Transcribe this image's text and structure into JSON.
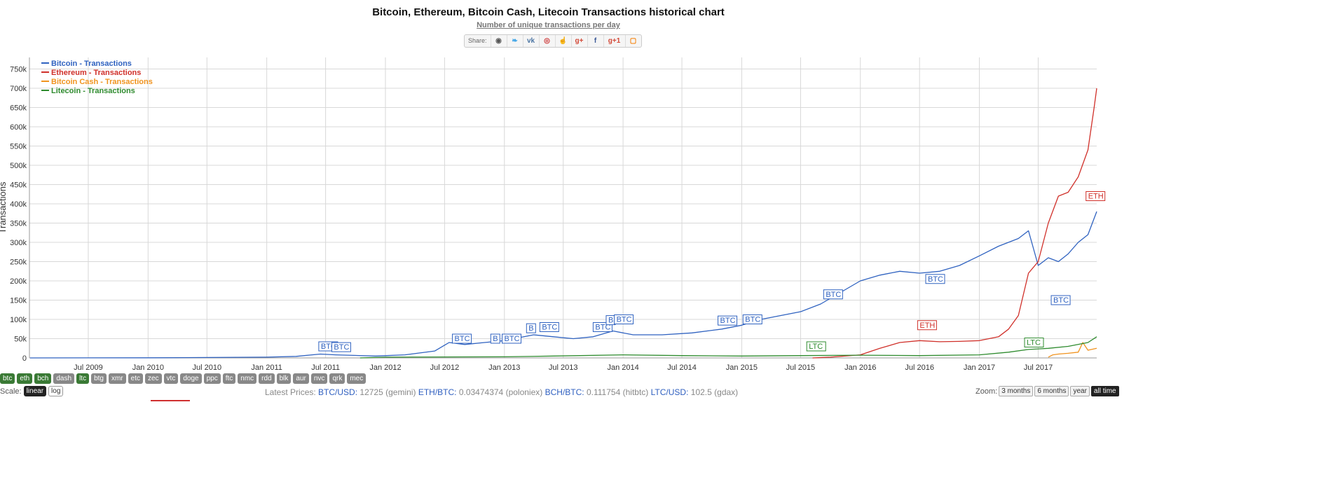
{
  "header": {
    "title": "Bitcoin, Ethereum, Bitcoin Cash, Litecoin Transactions historical chart",
    "subtitle": "Number of unique transactions per day",
    "share_label": "Share:",
    "share_icons": [
      "reddit-icon",
      "twitter-icon",
      "vk-icon",
      "weibo-icon",
      "like-icon",
      "googleplus-icon",
      "facebook-icon",
      "gplus-one-icon",
      "blogger-icon"
    ]
  },
  "chart_data": {
    "type": "line",
    "ylabel": "Transactions",
    "ylim": [
      0,
      780000
    ],
    "yticks": [
      0,
      50000,
      100000,
      150000,
      200000,
      250000,
      300000,
      350000,
      400000,
      450000,
      500000,
      550000,
      600000,
      650000,
      700000,
      750000
    ],
    "ytick_labels": [
      "0",
      "50k",
      "100k",
      "150k",
      "200k",
      "250k",
      "300k",
      "350k",
      "400k",
      "450k",
      "500k",
      "550k",
      "600k",
      "650k",
      "700k",
      "750k"
    ],
    "xlim": [
      "2009-01-01",
      "2017-12-28"
    ],
    "xticks": [
      "2009-07-01",
      "2010-01-01",
      "2010-07-01",
      "2011-01-01",
      "2011-07-01",
      "2012-01-01",
      "2012-07-01",
      "2013-01-01",
      "2013-07-01",
      "2014-01-01",
      "2014-07-01",
      "2015-01-01",
      "2015-07-01",
      "2016-01-01",
      "2016-07-01",
      "2017-01-01",
      "2017-07-01"
    ],
    "xtick_labels": [
      "Jul 2009",
      "Jan 2010",
      "Jul 2010",
      "Jan 2011",
      "Jul 2011",
      "Jan 2012",
      "Jul 2012",
      "Jan 2013",
      "Jul 2013",
      "Jan 2014",
      "Jul 2014",
      "Jan 2015",
      "Jul 2015",
      "Jan 2016",
      "Jul 2016",
      "Jan 2017",
      "Jul 2017"
    ],
    "legend_position": "top-left",
    "grid": true,
    "series": [
      {
        "name": "Bitcoin - Transactions",
        "color": "#2f62c0",
        "points": [
          [
            "2009-01-03",
            0
          ],
          [
            "2010-01-01",
            300
          ],
          [
            "2010-07-01",
            1000
          ],
          [
            "2011-01-01",
            2000
          ],
          [
            "2011-04-01",
            4000
          ],
          [
            "2011-06-15",
            10000
          ],
          [
            "2011-08-01",
            8000
          ],
          [
            "2011-12-01",
            5000
          ],
          [
            "2012-03-01",
            8000
          ],
          [
            "2012-06-01",
            18000
          ],
          [
            "2012-07-15",
            40000
          ],
          [
            "2012-09-01",
            35000
          ],
          [
            "2012-11-01",
            40000
          ],
          [
            "2013-01-01",
            45000
          ],
          [
            "2013-04-01",
            60000
          ],
          [
            "2013-06-01",
            55000
          ],
          [
            "2013-08-01",
            50000
          ],
          [
            "2013-10-01",
            55000
          ],
          [
            "2013-12-01",
            70000
          ],
          [
            "2014-02-01",
            60000
          ],
          [
            "2014-05-01",
            60000
          ],
          [
            "2014-08-01",
            65000
          ],
          [
            "2014-11-01",
            75000
          ],
          [
            "2015-01-01",
            85000
          ],
          [
            "2015-03-01",
            100000
          ],
          [
            "2015-05-01",
            110000
          ],
          [
            "2015-07-01",
            120000
          ],
          [
            "2015-09-01",
            140000
          ],
          [
            "2015-11-01",
            170000
          ],
          [
            "2016-01-01",
            200000
          ],
          [
            "2016-03-01",
            215000
          ],
          [
            "2016-05-01",
            225000
          ],
          [
            "2016-07-01",
            220000
          ],
          [
            "2016-09-01",
            225000
          ],
          [
            "2016-11-01",
            240000
          ],
          [
            "2017-01-01",
            265000
          ],
          [
            "2017-03-01",
            290000
          ],
          [
            "2017-05-01",
            310000
          ],
          [
            "2017-06-01",
            330000
          ],
          [
            "2017-07-01",
            240000
          ],
          [
            "2017-08-01",
            260000
          ],
          [
            "2017-09-01",
            250000
          ],
          [
            "2017-10-01",
            270000
          ],
          [
            "2017-11-01",
            300000
          ],
          [
            "2017-12-01",
            320000
          ],
          [
            "2017-12-28",
            380000
          ]
        ]
      },
      {
        "name": "Ethereum - Transactions",
        "color": "#d0302a",
        "points": [
          [
            "2015-08-07",
            0
          ],
          [
            "2015-10-01",
            2000
          ],
          [
            "2016-01-01",
            8000
          ],
          [
            "2016-03-01",
            25000
          ],
          [
            "2016-05-01",
            40000
          ],
          [
            "2016-07-01",
            45000
          ],
          [
            "2016-09-01",
            42000
          ],
          [
            "2016-11-01",
            43000
          ],
          [
            "2017-01-01",
            45000
          ],
          [
            "2017-03-01",
            55000
          ],
          [
            "2017-04-01",
            75000
          ],
          [
            "2017-05-01",
            110000
          ],
          [
            "2017-06-01",
            220000
          ],
          [
            "2017-07-01",
            250000
          ],
          [
            "2017-08-01",
            350000
          ],
          [
            "2017-09-01",
            420000
          ],
          [
            "2017-10-01",
            430000
          ],
          [
            "2017-11-01",
            470000
          ],
          [
            "2017-12-01",
            540000
          ],
          [
            "2017-12-20",
            650000
          ],
          [
            "2017-12-28",
            700000
          ]
        ]
      },
      {
        "name": "Bitcoin Cash - Transactions",
        "color": "#f0931e",
        "points": [
          [
            "2017-08-01",
            2000
          ],
          [
            "2017-08-15",
            8000
          ],
          [
            "2017-09-01",
            10000
          ],
          [
            "2017-10-01",
            12000
          ],
          [
            "2017-11-01",
            15000
          ],
          [
            "2017-11-15",
            40000
          ],
          [
            "2017-12-01",
            20000
          ],
          [
            "2017-12-28",
            25000
          ]
        ]
      },
      {
        "name": "Litecoin - Transactions",
        "color": "#2e8b2e",
        "points": [
          [
            "2011-10-15",
            0
          ],
          [
            "2012-01-01",
            2000
          ],
          [
            "2013-01-01",
            3000
          ],
          [
            "2013-06-01",
            5000
          ],
          [
            "2014-01-01",
            8000
          ],
          [
            "2014-07-01",
            6000
          ],
          [
            "2015-01-01",
            5000
          ],
          [
            "2015-07-01",
            6000
          ],
          [
            "2016-01-01",
            7000
          ],
          [
            "2016-07-01",
            6000
          ],
          [
            "2017-01-01",
            8000
          ],
          [
            "2017-04-01",
            15000
          ],
          [
            "2017-06-01",
            22000
          ],
          [
            "2017-08-01",
            25000
          ],
          [
            "2017-10-01",
            30000
          ],
          [
            "2017-12-01",
            40000
          ],
          [
            "2017-12-28",
            55000
          ]
        ]
      }
    ],
    "annotations": [
      {
        "label": "BTC",
        "x": "2011-06-10",
        "y": 20000,
        "series": "Bitcoin - Transactions"
      },
      {
        "label": "BTC",
        "x": "2011-07-20",
        "y": 18000,
        "series": "Bitcoin - Transactions"
      },
      {
        "label": "BTC",
        "x": "2012-07-25",
        "y": 40000,
        "series": "Bitcoin - Transactions"
      },
      {
        "label": "B",
        "x": "2012-11-20",
        "y": 40000,
        "series": "Bitcoin - Transactions"
      },
      {
        "label": "BTC",
        "x": "2012-12-25",
        "y": 40000,
        "series": "Bitcoin - Transactions"
      },
      {
        "label": "B",
        "x": "2013-03-10",
        "y": 67000,
        "series": "Bitcoin - Transactions"
      },
      {
        "label": "BTC",
        "x": "2013-04-20",
        "y": 70000,
        "series": "Bitcoin - Transactions"
      },
      {
        "label": "BTC",
        "x": "2013-10-01",
        "y": 70000,
        "series": "Bitcoin - Transactions"
      },
      {
        "label": "B",
        "x": "2013-11-10",
        "y": 88000,
        "series": "Bitcoin - Transactions"
      },
      {
        "label": "BTC",
        "x": "2013-12-05",
        "y": 90000,
        "series": "Bitcoin - Transactions"
      },
      {
        "label": "BTC",
        "x": "2014-10-20",
        "y": 87000,
        "series": "Bitcoin - Transactions"
      },
      {
        "label": "BTC",
        "x": "2015-01-05",
        "y": 90000,
        "series": "Bitcoin - Transactions"
      },
      {
        "label": "BTC",
        "x": "2015-09-10",
        "y": 155000,
        "series": "Bitcoin - Transactions"
      },
      {
        "label": "BTC",
        "x": "2016-07-20",
        "y": 195000,
        "series": "Bitcoin - Transactions"
      },
      {
        "label": "BTC",
        "x": "2017-08-10",
        "y": 140000,
        "series": "Bitcoin - Transactions"
      },
      {
        "label": "ETH",
        "x": "2016-06-25",
        "y": 75000,
        "series": "Ethereum - Transactions"
      },
      {
        "label": "ETH",
        "x": "2017-11-25",
        "y": 410000,
        "series": "Ethereum - Transactions"
      },
      {
        "label": "LTC",
        "x": "2015-07-20",
        "y": 20000,
        "series": "Litecoin - Transactions"
      },
      {
        "label": "LTC",
        "x": "2017-05-20",
        "y": 30000,
        "series": "Litecoin - Transactions"
      }
    ]
  },
  "coins": [
    {
      "label": "btc",
      "active": true
    },
    {
      "label": "eth",
      "active": true
    },
    {
      "label": "bch",
      "active": true
    },
    {
      "label": "dash",
      "active": false
    },
    {
      "label": "ltc",
      "active": true
    },
    {
      "label": "btg",
      "active": false
    },
    {
      "label": "xmr",
      "active": false
    },
    {
      "label": "etc",
      "active": false
    },
    {
      "label": "zec",
      "active": false
    },
    {
      "label": "vtc",
      "active": false
    },
    {
      "label": "doge",
      "active": false
    },
    {
      "label": "ppc",
      "active": false
    },
    {
      "label": "ftc",
      "active": false
    },
    {
      "label": "nmc",
      "active": false
    },
    {
      "label": "rdd",
      "active": false
    },
    {
      "label": "blk",
      "active": false
    },
    {
      "label": "aur",
      "active": false
    },
    {
      "label": "nvc",
      "active": false
    },
    {
      "label": "qrk",
      "active": false
    },
    {
      "label": "mec",
      "active": false
    }
  ],
  "scale": {
    "label": "Scale:",
    "linear": "linear",
    "log": "log"
  },
  "prices": {
    "label": "Latest Prices:",
    "items": [
      {
        "pair": "BTC/USD:",
        "value": "12725",
        "source": "(gemini)"
      },
      {
        "pair": "ETH/BTC:",
        "value": "0.03474374",
        "source": "(poloniex)"
      },
      {
        "pair": "BCH/BTC:",
        "value": "0.111754",
        "source": "(hitbtc)"
      },
      {
        "pair": "LTC/USD:",
        "value": "102.5",
        "source": "(gdax)"
      }
    ]
  },
  "zoom": {
    "label": "Zoom:",
    "options": [
      "3 months",
      "6 months",
      "year",
      "all time"
    ],
    "active": "all time"
  }
}
